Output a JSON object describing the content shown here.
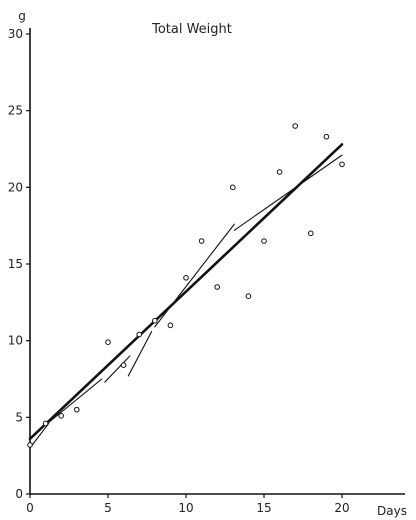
{
  "chart_data": {
    "type": "scatter",
    "title": "Total Weight",
    "ylabel": "g",
    "xlabel": "Days",
    "xlim": [
      0,
      22
    ],
    "ylim": [
      0,
      31
    ],
    "x_ticks": [
      "0",
      "5",
      "10",
      "15",
      "20"
    ],
    "y_ticks": [
      "0",
      "5",
      "10",
      "15",
      "20",
      "25",
      "30"
    ],
    "grid": false,
    "series": [
      {
        "type": "scatter",
        "x": [
          0,
          1,
          2,
          3,
          5,
          6,
          7,
          8,
          9,
          10,
          11,
          12,
          13,
          14,
          15,
          16,
          17,
          18,
          19,
          20
        ],
        "y": [
          3.2,
          4.6,
          5.1,
          5.5,
          9.9,
          8.4,
          10.4,
          11.3,
          11.0,
          14.1,
          16.5,
          13.5,
          20.0,
          12.9,
          16.5,
          21.0,
          24.0,
          17.0,
          23.3,
          21.5
        ]
      },
      {
        "type": "line",
        "style": "thick",
        "x": [
          0,
          20
        ],
        "y": [
          3.6,
          22.8
        ]
      },
      {
        "type": "line",
        "style": "thin",
        "x": [
          0,
          1.2
        ],
        "y": [
          3.0,
          4.6
        ]
      },
      {
        "type": "line",
        "style": "thin",
        "x": [
          1,
          4.6
        ],
        "y": [
          4.5,
          7.5
        ]
      },
      {
        "type": "line",
        "style": "thin",
        "x": [
          4.8,
          6.4
        ],
        "y": [
          7.3,
          9.0
        ]
      },
      {
        "type": "line",
        "style": "thin",
        "x": [
          6.3,
          7.8
        ],
        "y": [
          7.7,
          10.6
        ]
      },
      {
        "type": "line",
        "style": "thin",
        "x": [
          8,
          13.1
        ],
        "y": [
          10.9,
          17.6
        ]
      },
      {
        "type": "line",
        "style": "thin",
        "x": [
          13.1,
          20
        ],
        "y": [
          17.2,
          22.1
        ]
      }
    ]
  }
}
